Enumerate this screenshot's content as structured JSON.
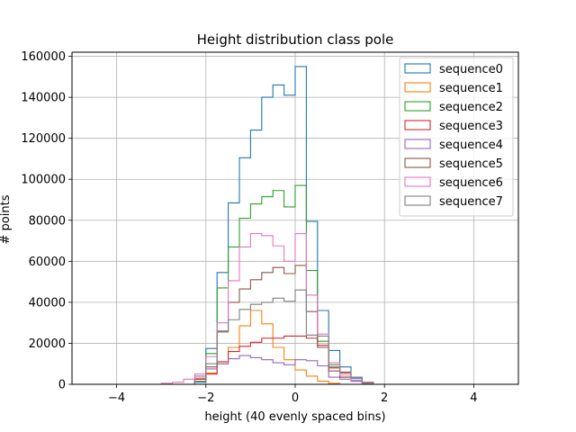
{
  "chart_data": {
    "type": "histogram",
    "title": "Height distribution class pole",
    "xlabel": "height (40 evenly spaced bins)",
    "ylabel": "# points",
    "xlim": [
      -5,
      5
    ],
    "ylim": [
      0,
      162000
    ],
    "xticks": [
      -4,
      -2,
      0,
      2,
      4
    ],
    "xtick_labels": [
      "−4",
      "−2",
      "0",
      "2",
      "4"
    ],
    "yticks": [
      0,
      20000,
      40000,
      60000,
      80000,
      100000,
      120000,
      140000,
      160000
    ],
    "ytick_labels": [
      "0",
      "20000",
      "40000",
      "60000",
      "80000",
      "100000",
      "120000",
      "140000",
      "160000"
    ],
    "grid": true,
    "legend_location": "upper right",
    "bin_edges": [
      -5,
      -4.75,
      -4.5,
      -4.25,
      -4,
      -3.75,
      -3.5,
      -3.25,
      -3,
      -2.75,
      -2.5,
      -2.25,
      -2,
      -1.75,
      -1.5,
      -1.25,
      -1,
      -0.75,
      -0.5,
      -0.25,
      0,
      0.25,
      0.5,
      0.75,
      1,
      1.25,
      1.5,
      1.75,
      2,
      2.25,
      2.5,
      2.75,
      3,
      3.25,
      3.5,
      3.75,
      4,
      4.25,
      4.5,
      4.75,
      5
    ],
    "series": [
      {
        "name": "sequence0",
        "color": "#1f77b4",
        "values": [
          0,
          0,
          0,
          0,
          0,
          0,
          0,
          0,
          0,
          0,
          0,
          1000,
          17500,
          54500,
          88500,
          110500,
          124000,
          140000,
          146000,
          141000,
          155000,
          79500,
          36000,
          16500,
          8500,
          3000,
          500,
          0,
          0,
          0,
          0,
          0,
          0,
          0,
          0,
          0,
          0,
          0,
          0,
          0
        ]
      },
      {
        "name": "sequence1",
        "color": "#ff7f0e",
        "values": [
          0,
          0,
          0,
          0,
          0,
          0,
          0,
          0,
          0,
          0,
          0,
          3000,
          5500,
          10000,
          18000,
          28500,
          36000,
          29500,
          18000,
          12000,
          7000,
          4000,
          1500,
          500,
          0,
          0,
          0,
          0,
          0,
          0,
          0,
          0,
          0,
          0,
          0,
          0,
          0,
          0,
          0,
          0
        ]
      },
      {
        "name": "sequence2",
        "color": "#2ca02c",
        "values": [
          0,
          0,
          0,
          0,
          0,
          0,
          0,
          0,
          0,
          0,
          0,
          1500,
          15000,
          47000,
          67000,
          81000,
          88000,
          91500,
          94500,
          86500,
          97000,
          55500,
          21000,
          9500,
          3500,
          1500,
          500,
          0,
          0,
          0,
          0,
          0,
          0,
          0,
          0,
          0,
          0,
          0,
          0,
          0
        ]
      },
      {
        "name": "sequence3",
        "color": "#d62728",
        "values": [
          0,
          0,
          0,
          0,
          0,
          0,
          0,
          0,
          0,
          0,
          0,
          2500,
          5000,
          11000,
          16000,
          18500,
          20500,
          22500,
          22500,
          23500,
          23500,
          22500,
          19000,
          8000,
          5500,
          3500,
          1000,
          0,
          0,
          0,
          0,
          0,
          0,
          0,
          0,
          0,
          0,
          0,
          0,
          0
        ]
      },
      {
        "name": "sequence4",
        "color": "#9467bd",
        "values": [
          0,
          0,
          0,
          0,
          0,
          0,
          0,
          0,
          0,
          0,
          0,
          4000,
          7500,
          10000,
          12500,
          14000,
          13000,
          12000,
          10500,
          9500,
          12000,
          11500,
          9000,
          3500,
          2500,
          1500,
          500,
          0,
          0,
          0,
          0,
          0,
          0,
          0,
          0,
          0,
          0,
          0,
          0,
          0
        ]
      },
      {
        "name": "sequence5",
        "color": "#8c564b",
        "values": [
          0,
          0,
          0,
          0,
          0,
          0,
          0,
          0,
          0,
          0,
          0,
          2500,
          8500,
          26000,
          40000,
          46500,
          51000,
          54500,
          57000,
          54000,
          58000,
          35500,
          18000,
          6500,
          3500,
          2000,
          500,
          0,
          0,
          0,
          0,
          0,
          0,
          0,
          0,
          0,
          0,
          0,
          0,
          0
        ]
      },
      {
        "name": "sequence6",
        "color": "#e377c2",
        "values": [
          0,
          0,
          0,
          0,
          0,
          0,
          0,
          0,
          500,
          1000,
          2500,
          5000,
          13500,
          30000,
          50500,
          67000,
          73500,
          72500,
          67500,
          60000,
          73500,
          43500,
          24500,
          10500,
          4500,
          2000,
          500,
          0,
          0,
          0,
          0,
          0,
          0,
          0,
          0,
          0,
          0,
          0,
          0,
          0
        ]
      },
      {
        "name": "sequence7",
        "color": "#7f7f7f",
        "values": [
          0,
          0,
          0,
          0,
          0,
          0,
          0,
          0,
          0,
          0,
          0,
          1500,
          10000,
          25500,
          31500,
          36500,
          39000,
          40000,
          42000,
          40500,
          46000,
          24000,
          23500,
          8500,
          6000,
          3500,
          1000,
          0,
          0,
          0,
          0,
          0,
          0,
          0,
          0,
          0,
          0,
          0,
          0,
          0
        ]
      }
    ]
  }
}
